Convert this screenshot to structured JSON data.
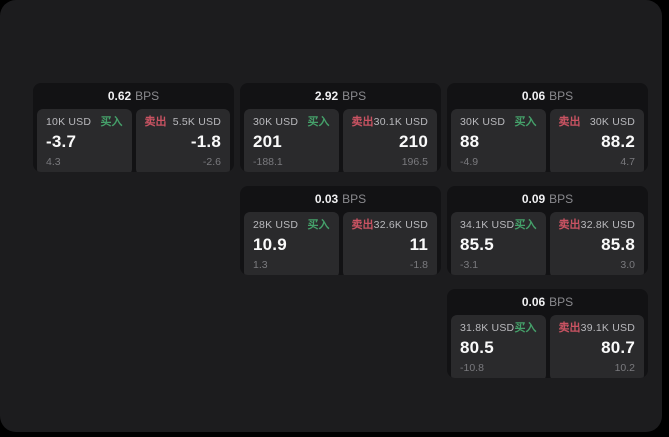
{
  "theme": {
    "page_bg": "#000000",
    "panel_bg": "#1c1c1e",
    "card_bg": "#121214",
    "tile_bg": "#2a2a2c",
    "buy_color": "#45a06a",
    "sell_color": "#c95362",
    "text_primary": "#fafafa",
    "text_muted": "#7a7a7e"
  },
  "labels": {
    "bps_suffix": "BPS",
    "buy": "买入",
    "sell": "卖出"
  },
  "cards": [
    {
      "spread_bps": "0.62",
      "buy": {
        "amount": "10K USD",
        "price": "-3.7",
        "delta": "4.3"
      },
      "sell": {
        "amount": "5.5K USD",
        "price": "-1.8",
        "delta": "-2.6"
      }
    },
    {
      "spread_bps": "2.92",
      "buy": {
        "amount": "30K USD",
        "price": "201",
        "delta": "-188.1"
      },
      "sell": {
        "amount": "30.1K USD",
        "price": "210",
        "delta": "196.5"
      }
    },
    {
      "spread_bps": "0.06",
      "buy": {
        "amount": "30K USD",
        "price": "88",
        "delta": "-4.9"
      },
      "sell": {
        "amount": "30K USD",
        "price": "88.2",
        "delta": "4.7"
      }
    },
    {
      "spread_bps": "0.03",
      "buy": {
        "amount": "28K USD",
        "price": "10.9",
        "delta": "1.3"
      },
      "sell": {
        "amount": "32.6K USD",
        "price": "11",
        "delta": "-1.8"
      }
    },
    {
      "spread_bps": "0.09",
      "buy": {
        "amount": "34.1K USD",
        "price": "85.5",
        "delta": "-3.1"
      },
      "sell": {
        "amount": "32.8K USD",
        "price": "85.8",
        "delta": "3.0"
      }
    },
    {
      "spread_bps": "0.06",
      "buy": {
        "amount": "31.8K USD",
        "price": "80.5",
        "delta": "-10.8"
      },
      "sell": {
        "amount": "39.1K USD",
        "price": "80.7",
        "delta": "10.2"
      }
    }
  ]
}
